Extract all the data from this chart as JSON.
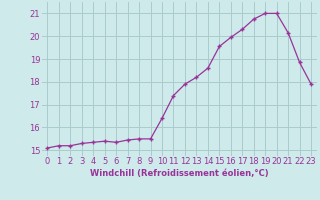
{
  "x": [
    0,
    1,
    2,
    3,
    4,
    5,
    6,
    7,
    8,
    9,
    10,
    11,
    12,
    13,
    14,
    15,
    16,
    17,
    18,
    19,
    20,
    21,
    22,
    23
  ],
  "y": [
    15.1,
    15.2,
    15.2,
    15.3,
    15.35,
    15.4,
    15.35,
    15.45,
    15.5,
    15.5,
    16.4,
    17.4,
    17.9,
    18.2,
    18.6,
    19.55,
    19.95,
    20.3,
    20.75,
    21.0,
    21.0,
    20.15,
    18.85,
    17.9
  ],
  "line_color": "#993399",
  "marker": "+",
  "markersize": 3.5,
  "linewidth": 0.9,
  "xlabel": "Windchill (Refroidissement éolien,°C)",
  "xlabel_fontsize": 6,
  "ylabel_ticks": [
    15,
    16,
    17,
    18,
    19,
    20,
    21
  ],
  "xlim": [
    -0.5,
    23.5
  ],
  "ylim": [
    14.75,
    21.5
  ],
  "bg_color": "#ceeaea",
  "grid_color": "#aacccc",
  "tick_color": "#993399",
  "tick_fontsize": 6,
  "xtick_labels": [
    "0",
    "1",
    "2",
    "3",
    "4",
    "5",
    "6",
    "7",
    "8",
    "9",
    "10",
    "11",
    "12",
    "13",
    "14",
    "15",
    "16",
    "17",
    "18",
    "19",
    "20",
    "21",
    "22",
    "23"
  ]
}
